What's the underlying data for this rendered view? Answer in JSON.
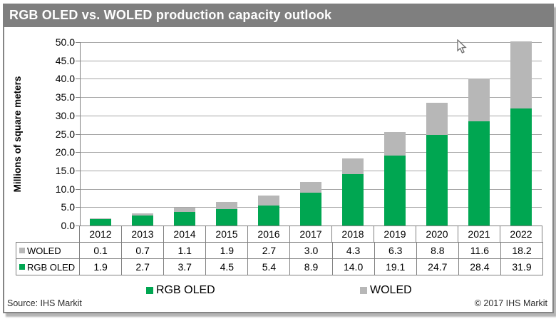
{
  "title": "RGB OLED vs. WOLED production capacity outlook",
  "chart_data": {
    "type": "bar",
    "stacked": true,
    "title": "RGB OLED vs. WOLED production capacity outlook",
    "categories": [
      "2012",
      "2013",
      "2014",
      "2015",
      "2016",
      "2017",
      "2018",
      "2019",
      "2020",
      "2021",
      "2022"
    ],
    "series": [
      {
        "name": "RGB OLED",
        "color": "#00a651",
        "values": [
          1.9,
          2.7,
          3.7,
          4.5,
          5.4,
          8.9,
          14.0,
          19.1,
          24.7,
          28.4,
          31.9
        ]
      },
      {
        "name": "WOLED",
        "color": "#b7b7b7",
        "values": [
          0.1,
          0.7,
          1.1,
          1.9,
          2.7,
          3.0,
          4.3,
          6.3,
          8.8,
          11.6,
          18.2
        ]
      }
    ],
    "xlabel": "",
    "ylabel": "Millions of square meters",
    "ylim": [
      0,
      50
    ],
    "ytick_labels": [
      "0.0",
      "5.0",
      "10.0",
      "15.0",
      "20.0",
      "25.0",
      "30.0",
      "35.0",
      "40.0",
      "45.0",
      "50.0"
    ],
    "grid": "horizontal",
    "legend_position": "bottom",
    "data_table_shown": true
  },
  "data_table": {
    "rows": [
      {
        "label": "WOLED",
        "swatch_color": "#b7b7b7",
        "values": [
          "0.1",
          "0.7",
          "1.1",
          "1.9",
          "2.7",
          "3.0",
          "4.3",
          "6.3",
          "8.8",
          "11.6",
          "18.2"
        ]
      },
      {
        "label": "RGB OLED",
        "swatch_color": "#00a651",
        "values": [
          "1.9",
          "2.7",
          "3.7",
          "4.5",
          "5.4",
          "8.9",
          "14.0",
          "19.1",
          "24.7",
          "28.4",
          "31.9"
        ]
      }
    ]
  },
  "legend": [
    {
      "label": "RGB OLED",
      "color": "#00a651"
    },
    {
      "label": "WOLED",
      "color": "#b7b7b7"
    }
  ],
  "footer": {
    "source": "Source: IHS Markit",
    "copyright": "© 2017 IHS Markit"
  },
  "colors": {
    "title_bar": "#7f7f7f",
    "rgb_oled": "#00a651",
    "woled": "#b7b7b7",
    "gridline": "#a6a6a6",
    "axis": "#808080"
  },
  "icons": {
    "mouse_cursor": "arrow-pointer"
  }
}
